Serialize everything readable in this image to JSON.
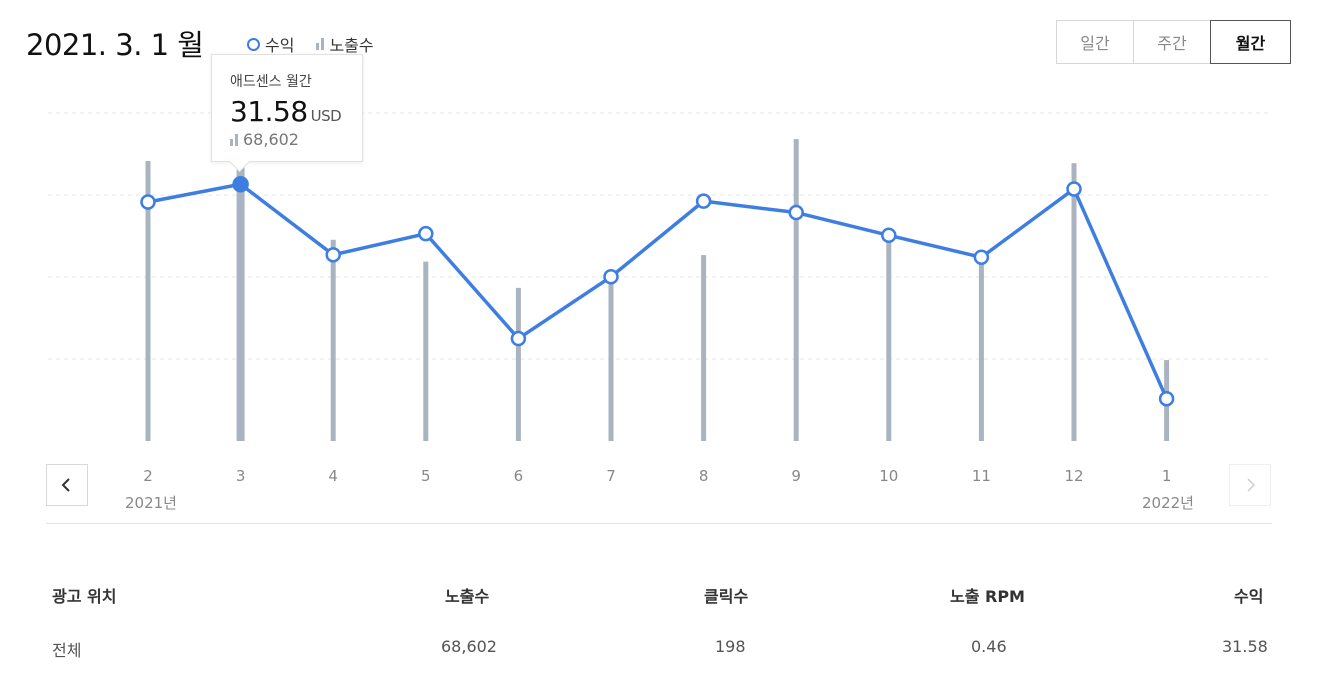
{
  "header": {
    "title": "2021. 3. 1 월"
  },
  "legend": {
    "revenue_label": "수익",
    "impressions_label": "노출수"
  },
  "period_tabs": [
    {
      "label": "일간",
      "active": false
    },
    {
      "label": "주간",
      "active": false
    },
    {
      "label": "월간",
      "active": true
    }
  ],
  "tooltip": {
    "title": "애드센스 월간",
    "value": "31.58",
    "unit": "USD",
    "impressions": "68,602"
  },
  "year_labels": {
    "start": "2021년",
    "end": "2022년"
  },
  "table": {
    "headers": [
      "광고 위치",
      "노출수",
      "클릭수",
      "노출 RPM",
      "수익"
    ],
    "rows": [
      [
        "전체",
        "68,602",
        "198",
        "0.46",
        "31.58"
      ]
    ]
  },
  "colors": {
    "revenue": "#3e7ee0",
    "impressions": "#aab4c0",
    "grid": "#e6e6e6"
  },
  "chart_data": {
    "type": "line",
    "categories": [
      "2",
      "3",
      "4",
      "5",
      "6",
      "7",
      "8",
      "9",
      "10",
      "11",
      "12",
      "1"
    ],
    "series": [
      {
        "name": "수익",
        "type": "line",
        "values": [
          29.4,
          31.58,
          22.9,
          25.5,
          12.6,
          20.2,
          29.5,
          28.1,
          25.3,
          22.6,
          31.0,
          5.2
        ]
      },
      {
        "name": "노출수",
        "type": "bar",
        "values": [
          64000,
          68602,
          46000,
          41000,
          35000,
          38000,
          42500,
          69000,
          48000,
          43000,
          63500,
          18500
        ]
      }
    ],
    "highlight_index": 1,
    "grid": true,
    "legend_position": "top"
  }
}
